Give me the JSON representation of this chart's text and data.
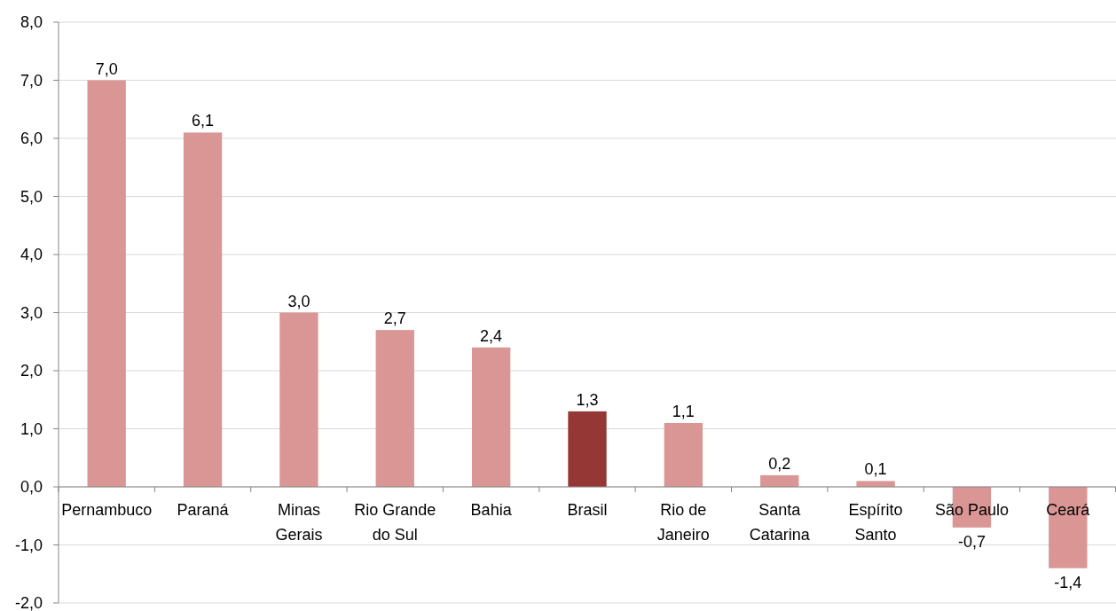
{
  "chart_data": {
    "type": "bar",
    "categories": [
      "Pernambuco",
      "Paraná",
      "Minas Gerais",
      "Rio Grande do Sul",
      "Bahia",
      "Brasil",
      "Rio de Janeiro",
      "Santa Catarina",
      "Espírito Santo",
      "São Paulo",
      "Ceará"
    ],
    "values": [
      7.0,
      6.1,
      3.0,
      2.7,
      2.4,
      1.3,
      1.1,
      0.2,
      0.1,
      -0.7,
      -1.4
    ],
    "colors": [
      "#d99694",
      "#d99694",
      "#d99694",
      "#d99694",
      "#d99694",
      "#953735",
      "#d99694",
      "#d99694",
      "#d99694",
      "#d99694",
      "#d99694"
    ],
    "value_labels": [
      "7,0",
      "6,1",
      "3,0",
      "2,7",
      "2,4",
      "1,3",
      "1,1",
      "0,2",
      "0,1",
      "-0,7",
      "-1,4"
    ],
    "ylim": [
      -2,
      8
    ],
    "yticks": [
      {
        "value": -2,
        "label": "-2,0"
      },
      {
        "value": -1,
        "label": "-1,0"
      },
      {
        "value": 0,
        "label": "0,0"
      },
      {
        "value": 1,
        "label": "1,0"
      },
      {
        "value": 2,
        "label": "2,0"
      },
      {
        "value": 3,
        "label": "3,0"
      },
      {
        "value": 4,
        "label": "4,0"
      },
      {
        "value": 5,
        "label": "5,0"
      },
      {
        "value": 6,
        "label": "6,0"
      },
      {
        "value": 7,
        "label": "7,0"
      },
      {
        "value": 8,
        "label": "8,0"
      }
    ],
    "grid": "y"
  }
}
